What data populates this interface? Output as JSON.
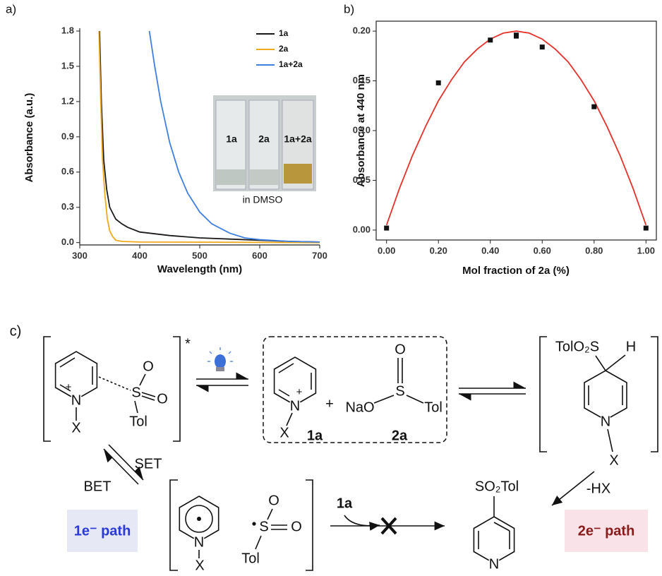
{
  "chart_data": [
    {
      "type": "line",
      "panel": "a)",
      "xlabel": "Wavelength (nm)",
      "ylabel": "Absorbance (a.u.)",
      "xlim": [
        300,
        700
      ],
      "ylim": [
        -0.02,
        1.8
      ],
      "xticks": [
        300,
        400,
        500,
        600,
        700
      ],
      "yticks": [
        {
          "value": 0,
          "label": "0.0"
        },
        0.3,
        0.6,
        0.9,
        1.2,
        1.5,
        1.8
      ],
      "legend": "upper right",
      "inset_labels": [
        "1a",
        "2a",
        "1a+2a",
        "in DMSO"
      ],
      "series": [
        {
          "name": "1a",
          "color": "#1a1a1a",
          "x": [
            333,
            336,
            340,
            345,
            350,
            360,
            370,
            380,
            400,
            450,
            500,
            550,
            600,
            650,
            700
          ],
          "values": [
            1.8,
            1.2,
            0.7,
            0.45,
            0.3,
            0.2,
            0.16,
            0.13,
            0.09,
            0.06,
            0.04,
            0.03,
            0.02,
            0.01,
            0.005
          ]
        },
        {
          "name": "2a",
          "color": "#f0a81c",
          "x": [
            332,
            335,
            338,
            342,
            346,
            350,
            355,
            360,
            370,
            400,
            700
          ],
          "values": [
            1.8,
            1.2,
            0.7,
            0.4,
            0.2,
            0.1,
            0.05,
            0.02,
            0.01,
            0.005,
            0
          ]
        },
        {
          "name": "1a+2a",
          "color": "#3f7fe0",
          "x": [
            416,
            425,
            435,
            450,
            465,
            480,
            500,
            520,
            550,
            575,
            600,
            650,
            700
          ],
          "values": [
            1.8,
            1.5,
            1.2,
            0.85,
            0.6,
            0.42,
            0.26,
            0.16,
            0.08,
            0.04,
            0.025,
            0.01,
            0.005
          ]
        }
      ]
    },
    {
      "type": "scatter",
      "panel": "b)",
      "xlabel": "Mol fraction of 2a (%)",
      "ylabel": "Absorbance at 440 nm",
      "xlim": [
        -0.04,
        1.04
      ],
      "ylim": [
        -0.01,
        0.21
      ],
      "xticks": [
        {
          "value": 0,
          "label": "0.00"
        },
        {
          "value": 0.2,
          "label": "0.20"
        },
        {
          "value": 0.4,
          "label": "0.40"
        },
        {
          "value": 0.6,
          "label": "0.60"
        },
        {
          "value": 0.8,
          "label": "0.80"
        },
        {
          "value": 1,
          "label": "1.00"
        }
      ],
      "yticks": [
        {
          "value": 0,
          "label": "0.00"
        },
        {
          "value": 0.05,
          "label": "0.05"
        },
        {
          "value": 0.1,
          "label": "0.10"
        },
        {
          "value": 0.15,
          "label": "0.15"
        },
        {
          "value": 0.2,
          "label": "0.20"
        }
      ],
      "series": [
        {
          "mode": "line",
          "color": "#e8302a",
          "x": [
            0,
            0.05,
            0.1,
            0.15,
            0.2,
            0.25,
            0.3,
            0.35,
            0.4,
            0.45,
            0.5,
            0.55,
            0.6,
            0.65,
            0.7,
            0.75,
            0.8,
            0.85,
            0.9,
            0.95,
            1
          ],
          "values": [
            0.005,
            0.042,
            0.075,
            0.104,
            0.13,
            0.151,
            0.169,
            0.182,
            0.192,
            0.198,
            0.2,
            0.198,
            0.192,
            0.182,
            0.169,
            0.151,
            0.13,
            0.104,
            0.075,
            0.042,
            0.005
          ]
        },
        {
          "mode": "markers",
          "color": "#111111",
          "x": [
            0,
            0.2,
            0.4,
            0.5,
            0.5,
            0.6,
            0.8,
            1
          ],
          "values": [
            0.002,
            0.148,
            0.191,
            0.196,
            0.195,
            0.184,
            0.124,
            0.002
          ]
        }
      ]
    }
  ],
  "scheme": {
    "labels": [
      "c)",
      "*",
      "+",
      "N",
      "X",
      "S",
      "O",
      "O",
      "Tol",
      "+",
      "N",
      "X",
      "1a",
      "+",
      "NaO",
      "S",
      "O",
      "Tol",
      "2a",
      "TolO₂S",
      "H",
      "N",
      "X",
      "SET",
      "BET",
      "1e⁻ path",
      "N",
      "X",
      "S",
      "O",
      "O",
      "Tol",
      "1a",
      "SO₂Tol",
      "N",
      "-HX",
      "2e⁻ path"
    ]
  }
}
